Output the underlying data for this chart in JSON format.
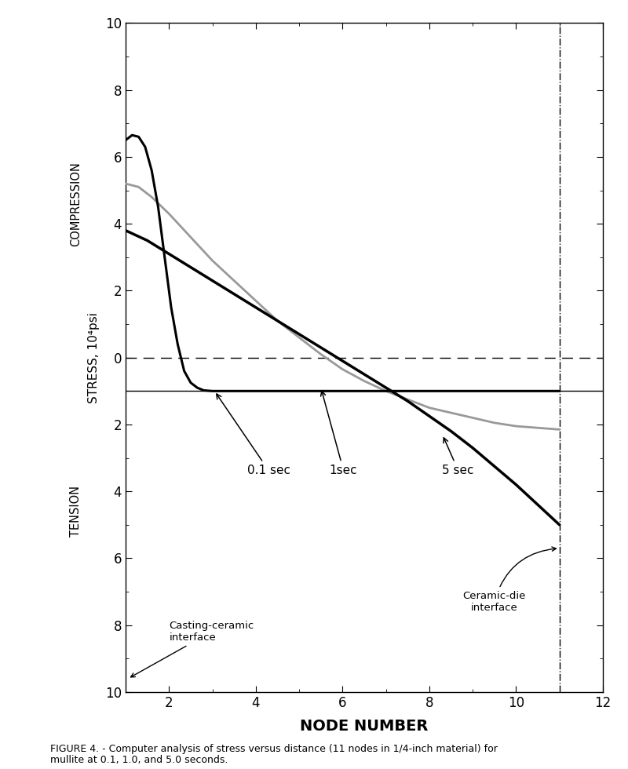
{
  "xlabel": "NODE NUMBER",
  "ylabel": "STRESS, 10⁴psi",
  "ylim": [
    -10,
    10
  ],
  "xlim": [
    1,
    12
  ],
  "xticks": [
    2,
    4,
    6,
    8,
    10,
    12
  ],
  "yticks": [
    -10,
    -8,
    -6,
    -4,
    -2,
    0,
    2,
    4,
    6,
    8,
    10
  ],
  "ytick_labels": [
    "10",
    "8",
    "6",
    "4",
    "2",
    "0",
    "2",
    "4",
    "6",
    "8",
    "10"
  ],
  "compression_label": "COMPRESSION",
  "tension_label": "TENSION",
  "caption_line1": "FIGURE 4. - Computer analysis of stress versus distance (11 nodes in 1/4-inch material) for",
  "caption_line2": "mullite at 0.1, 1.0, and 5.0 seconds.",
  "curve_01sec_x": [
    1.0,
    1.15,
    1.3,
    1.45,
    1.6,
    1.75,
    1.9,
    2.05,
    2.2,
    2.35,
    2.5,
    2.65,
    2.8,
    3.0,
    3.5,
    4.0,
    5.0,
    6.0,
    7.0,
    8.0,
    9.0,
    10.0,
    11.0
  ],
  "curve_01sec_y": [
    6.5,
    6.65,
    6.6,
    6.3,
    5.6,
    4.5,
    3.0,
    1.5,
    0.4,
    -0.4,
    -0.75,
    -0.9,
    -0.98,
    -1.0,
    -1.0,
    -1.0,
    -1.0,
    -1.0,
    -1.0,
    -1.0,
    -1.0,
    -1.0,
    -1.0
  ],
  "curve_1sec_x": [
    1.0,
    1.3,
    1.6,
    2.0,
    2.5,
    3.0,
    3.5,
    4.0,
    4.5,
    5.0,
    5.5,
    6.0,
    6.5,
    7.0,
    7.5,
    8.0,
    8.5,
    9.0,
    9.5,
    10.0,
    10.5,
    11.0
  ],
  "curve_1sec_y": [
    5.2,
    5.1,
    4.8,
    4.3,
    3.6,
    2.9,
    2.3,
    1.7,
    1.1,
    0.6,
    0.1,
    -0.35,
    -0.7,
    -1.0,
    -1.25,
    -1.5,
    -1.65,
    -1.8,
    -1.95,
    -2.05,
    -2.1,
    -2.15
  ],
  "curve_5sec_x": [
    1.0,
    1.5,
    2.0,
    2.5,
    3.0,
    3.5,
    4.0,
    4.5,
    5.0,
    5.5,
    6.0,
    6.5,
    7.0,
    7.5,
    8.0,
    8.5,
    9.0,
    9.5,
    10.0,
    10.5,
    11.0
  ],
  "curve_5sec_y": [
    3.8,
    3.5,
    3.1,
    2.7,
    2.3,
    1.9,
    1.5,
    1.1,
    0.7,
    0.3,
    -0.1,
    -0.5,
    -0.9,
    -1.3,
    -1.75,
    -2.2,
    -2.7,
    -3.25,
    -3.8,
    -4.4,
    -5.0
  ],
  "horizontal_line_y": -1.0,
  "dashed_line_y": 0.0,
  "vertical_dashdot_x": 11.0,
  "label_01sec": "0.1 sec",
  "label_1sec": "1sec",
  "label_5sec": "5 sec",
  "casting_ceramic_label": "Casting-ceramic\ninterface",
  "ceramic_die_label": "Ceramic-die\ninterface",
  "background_color": "#ffffff",
  "line_color": "#000000",
  "gray_color": "#999999"
}
